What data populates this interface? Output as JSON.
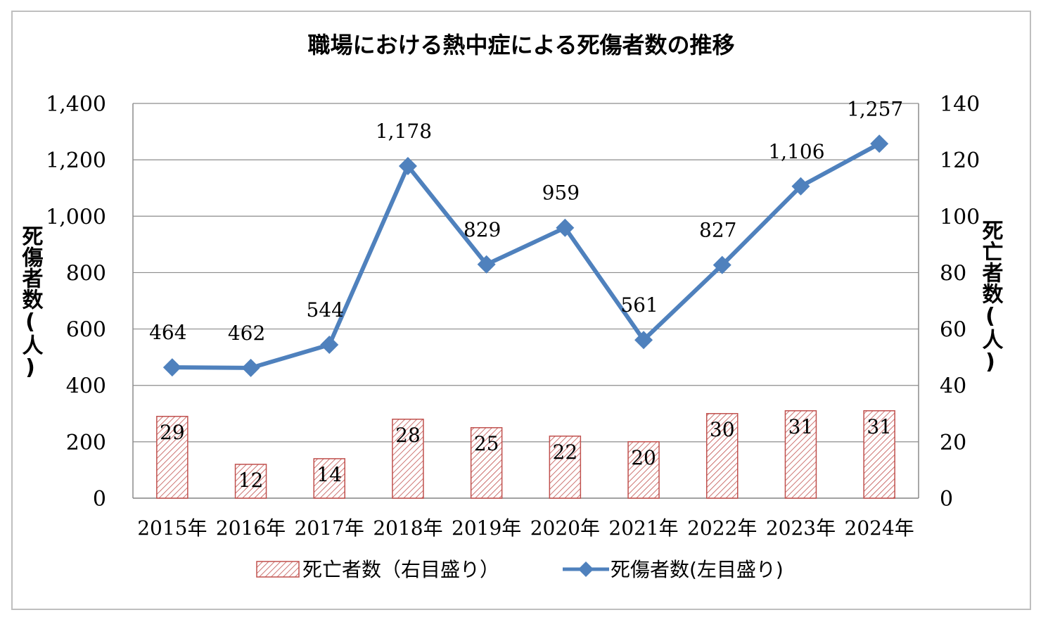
{
  "chart_data": {
    "type": "bar+line",
    "title": "職場における熱中症による死傷者数の推移",
    "categories": [
      "2015年",
      "2016年",
      "2017年",
      "2018年",
      "2019年",
      "2020年",
      "2021年",
      "2022年",
      "2023年",
      "2024年"
    ],
    "series": [
      {
        "name": "死亡者数（右目盛り）",
        "type": "bar",
        "axis": "right",
        "values": [
          29,
          12,
          14,
          28,
          25,
          22,
          20,
          30,
          31,
          31
        ],
        "labels": [
          "29",
          "12",
          "14",
          "28",
          "25",
          "22",
          "20",
          "30",
          "31",
          "31"
        ],
        "color": "#c0504d",
        "pattern": "diagonal-hatch"
      },
      {
        "name": "死傷者数(左目盛り)",
        "type": "line",
        "axis": "left",
        "marker": "diamond",
        "values": [
          464,
          462,
          544,
          1178,
          829,
          959,
          561,
          827,
          1106,
          1257
        ],
        "labels": [
          "464",
          "462",
          "544",
          "1,178",
          "829",
          "959",
          "561",
          "827",
          "1,106",
          "1,257"
        ],
        "color": "#4f81bd"
      }
    ],
    "y_left": {
      "label": "死傷者数(人)",
      "range": [
        0,
        1400
      ],
      "ticks": [
        0,
        200,
        400,
        600,
        800,
        1000,
        1200,
        1400
      ],
      "tick_labels": [
        "0",
        "200",
        "400",
        "600",
        "800",
        "1,000",
        "1,200",
        "1,400"
      ]
    },
    "y_right": {
      "label": "死亡者数(人)",
      "range": [
        0,
        140
      ],
      "ticks": [
        0,
        20,
        40,
        60,
        80,
        100,
        120,
        140
      ],
      "tick_labels": [
        "0",
        "20",
        "40",
        "60",
        "80",
        "100",
        "120",
        "140"
      ]
    },
    "grid": true,
    "legend_position": "bottom"
  }
}
